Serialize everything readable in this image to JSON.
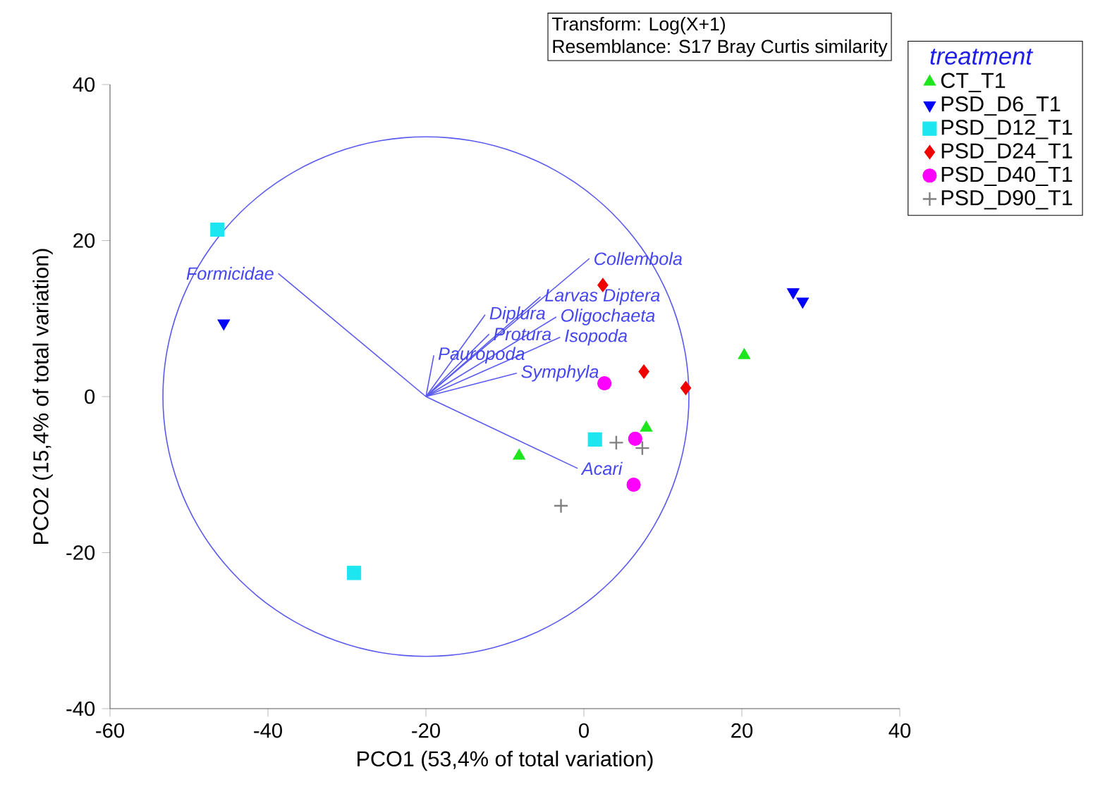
{
  "chart_data": {
    "type": "scatter",
    "xlabel": "PCO1 (53,4% of total variation)",
    "ylabel": "PCO2 (15,4% of total variation)",
    "legend_title": "treatment",
    "legend": "top right",
    "grid": false,
    "xlim": [
      -60,
      40
    ],
    "xticks": [
      -60,
      -40,
      -20,
      0,
      20,
      40
    ],
    "ylim": [
      -40,
      40
    ],
    "yticks": [
      -40,
      -20,
      0,
      20,
      40
    ],
    "series": [
      {
        "name": "CT_T1",
        "color": "#1ee61e",
        "marker": "triangle",
        "x": [
          20.3,
          7.9,
          -8.2
        ],
        "values": [
          5.3,
          -4.0,
          -7.6
        ]
      },
      {
        "name": "PSD_D6_T1",
        "color": "#0000ff",
        "marker": "triangle-down",
        "x": [
          -45.6,
          26.5,
          27.7
        ],
        "values": [
          9.4,
          13.4,
          12.2
        ]
      },
      {
        "name": "PSD_D12_T1",
        "color": "#1ee6f0",
        "marker": "square",
        "x": [
          -46.4,
          -29.1,
          1.4
        ],
        "values": [
          21.4,
          -22.6,
          -5.5
        ]
      },
      {
        "name": "PSD_D24_T1",
        "color": "#f00000",
        "marker": "diamond",
        "x": [
          2.4,
          7.6,
          12.9
        ],
        "values": [
          14.3,
          3.2,
          1.1
        ]
      },
      {
        "name": "PSD_D40_T1",
        "color": "#ff00ff",
        "marker": "circle",
        "x": [
          2.6,
          6.5,
          6.3
        ],
        "values": [
          1.7,
          -5.4,
          -11.3
        ]
      },
      {
        "name": "PSD_D90_T1",
        "color": "#808080",
        "marker": "cross",
        "x": [
          4.1,
          7.4,
          -2.9
        ],
        "values": [
          -5.9,
          -6.6,
          -14.0
        ]
      },
      {
        "type": "line",
        "color": "#5a5af0",
        "x": [
          -38.7,
          -20
        ],
        "values": [
          15.8,
          0
        ]
      },
      {
        "type": "line",
        "color": "#5a5af0",
        "x": [
          -20,
          0.7
        ],
        "values": [
          0,
          17.7
        ]
      },
      {
        "type": "line",
        "color": "#5a5af0",
        "x": [
          -20,
          -5.5
        ],
        "values": [
          0,
          12.8
        ]
      },
      {
        "type": "line",
        "color": "#5a5af0",
        "x": [
          -20,
          -12.5
        ],
        "values": [
          0,
          10.5
        ]
      },
      {
        "type": "line",
        "color": "#5a5af0",
        "x": [
          -20,
          -12.0
        ],
        "values": [
          0,
          8.0
        ]
      },
      {
        "type": "line",
        "color": "#5a5af0",
        "x": [
          -20,
          -3.5
        ],
        "values": [
          0,
          10.2
        ]
      },
      {
        "type": "line",
        "color": "#5a5af0",
        "x": [
          -20,
          -3.0
        ],
        "values": [
          0,
          7.6
        ]
      },
      {
        "type": "line",
        "color": "#5a5af0",
        "x": [
          -20,
          -19.0
        ],
        "values": [
          0,
          5.3
        ]
      },
      {
        "type": "line",
        "color": "#5a5af0",
        "x": [
          -20,
          -8.5
        ],
        "values": [
          0,
          3.0
        ]
      },
      {
        "type": "line",
        "color": "#5a5af0",
        "x": [
          -20,
          -0.8
        ],
        "values": [
          0,
          -9.2
        ]
      }
    ],
    "annotations": [
      "Transform: Log(X+1)",
      "Resemblance: S17 Bray Curtis similarity",
      {
        "text": "Formicidae",
        "x": -38.7,
        "y": 15.8
      },
      {
        "text": "Collembola",
        "x": 0.7,
        "y": 17.7
      },
      {
        "text": "Larvas Diptera",
        "x": -5.5,
        "y": 12.8
      },
      {
        "text": "Diplura",
        "x": -12.5,
        "y": 10.5
      },
      {
        "text": "Protura",
        "x": -12.0,
        "y": 8.0
      },
      {
        "text": "Oligochaeta",
        "x": -3.5,
        "y": 10.2
      },
      {
        "text": "Isopoda",
        "x": -3.0,
        "y": 7.6
      },
      {
        "text": "Pauropoda",
        "x": -19.0,
        "y": 5.3
      },
      {
        "text": "Symphyla",
        "x": -8.5,
        "y": 3.0
      },
      {
        "text": "Acari",
        "x": -0.8,
        "y": -9.2
      }
    ]
  }
}
